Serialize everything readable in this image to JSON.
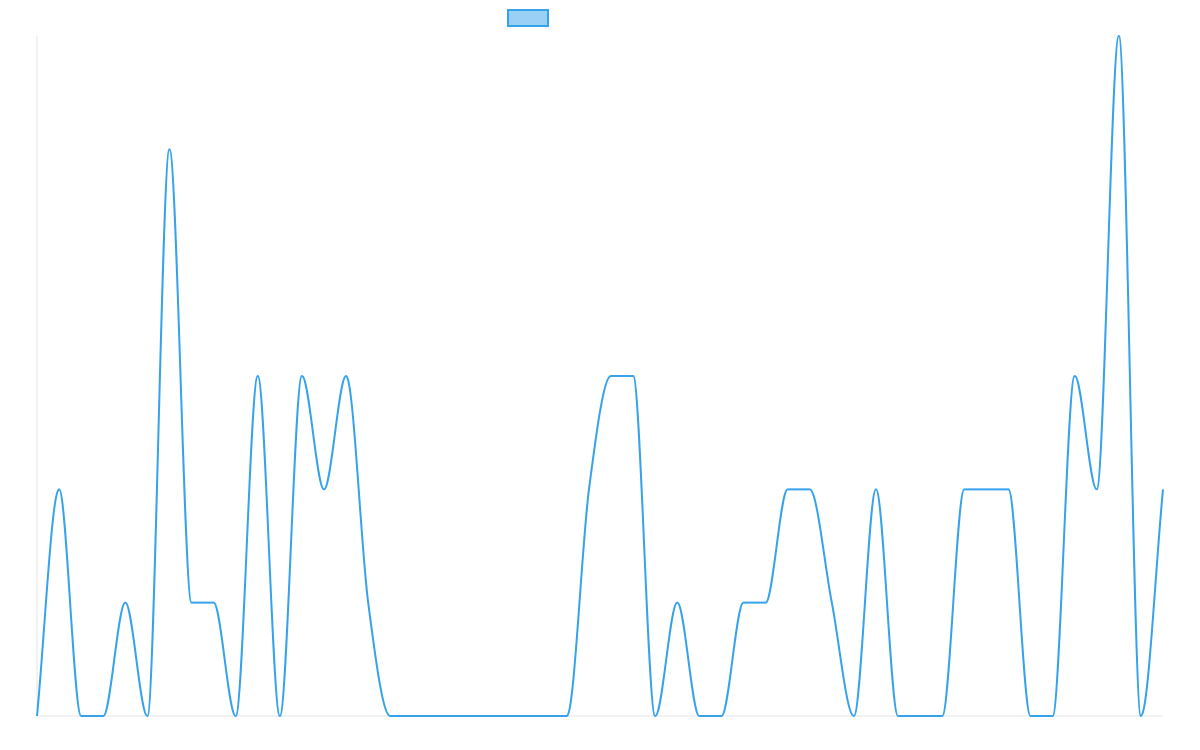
{
  "chart_data": {
    "type": "line",
    "title": "",
    "xlabel": "",
    "ylabel": "",
    "x": [
      0,
      1,
      2,
      3,
      4,
      5,
      6,
      7,
      8,
      9,
      10,
      11,
      12,
      13,
      14,
      15,
      16,
      17,
      18,
      19,
      20,
      21,
      22,
      23,
      24,
      25,
      26,
      27,
      28,
      29,
      30,
      31,
      32,
      33,
      34,
      35,
      36,
      37,
      38,
      39,
      40,
      41,
      42,
      43,
      44,
      45,
      46,
      47,
      48,
      49,
      50,
      51
    ],
    "ylim": [
      0,
      6
    ],
    "grid": false,
    "legend": "top-center",
    "series": [
      {
        "name": "",
        "color": "#36A2EB",
        "fill": "#9AD0F5",
        "values": [
          0,
          2,
          0,
          0,
          1,
          0,
          5,
          1,
          1,
          0,
          3,
          0,
          3,
          2,
          3,
          1,
          0,
          0,
          0,
          0,
          0,
          0,
          0,
          0,
          0,
          2,
          3,
          3,
          0,
          1,
          0,
          0,
          1,
          1,
          2,
          2,
          1,
          0,
          2,
          0,
          0,
          0,
          2,
          2,
          2,
          0,
          0,
          3,
          2,
          6,
          0,
          2
        ]
      }
    ]
  }
}
